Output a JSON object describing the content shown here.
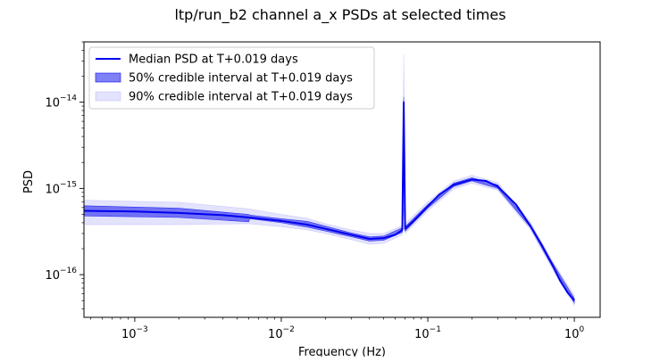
{
  "chart_data": {
    "type": "line",
    "title": "ltp/run_b2 channel a_x PSDs at selected times",
    "xlabel": "Frequency (Hz)",
    "ylabel": "PSD",
    "xscale": "log",
    "yscale": "log",
    "xlim": [
      0.00045,
      1.5
    ],
    "ylim": [
      3.2e-17,
      5e-14
    ],
    "grid": false,
    "legend_position": "top-left",
    "x_ticks": [
      {
        "value": 0.001,
        "base": "10",
        "exp": "−3"
      },
      {
        "value": 0.01,
        "base": "10",
        "exp": "−2"
      },
      {
        "value": 0.1,
        "base": "10",
        "exp": "−1"
      },
      {
        "value": 1,
        "base": "10",
        "exp": "0"
      }
    ],
    "y_ticks": [
      {
        "value": 1e-16,
        "base": "10",
        "exp": "−16"
      },
      {
        "value": 1e-15,
        "base": "10",
        "exp": "−15"
      },
      {
        "value": 1e-14,
        "base": "10",
        "exp": "−14"
      }
    ],
    "series": [
      {
        "name": "Median PSD at T+0.019 days",
        "kind": "line",
        "color": "#0000ee",
        "points": [
          [
            0.00045,
            5.5e-16
          ],
          [
            0.001,
            5.4e-16
          ],
          [
            0.002,
            5.2e-16
          ],
          [
            0.004,
            4.9e-16
          ],
          [
            0.006,
            4.6e-16
          ],
          [
            0.01,
            4.2e-16
          ],
          [
            0.015,
            3.8e-16
          ],
          [
            0.02,
            3.4e-16
          ],
          [
            0.03,
            2.9e-16
          ],
          [
            0.04,
            2.6e-16
          ],
          [
            0.05,
            2.65e-16
          ],
          [
            0.06,
            2.9e-16
          ],
          [
            0.067,
            3.3e-16
          ],
          [
            0.0685,
            1e-14
          ],
          [
            0.07,
            3.4e-16
          ],
          [
            0.08,
            4.2e-16
          ],
          [
            0.1,
            6.2e-16
          ],
          [
            0.12,
            8.5e-16
          ],
          [
            0.15,
            1.1e-15
          ],
          [
            0.2,
            1.27e-15
          ],
          [
            0.25,
            1.22e-15
          ],
          [
            0.3,
            1.05e-15
          ],
          [
            0.4,
            6.5e-16
          ],
          [
            0.5,
            3.7e-16
          ],
          [
            0.6,
            2.2e-16
          ],
          [
            0.7,
            1.35e-16
          ],
          [
            0.8,
            8.5e-17
          ],
          [
            0.9,
            6.2e-17
          ],
          [
            1.0,
            5e-17
          ]
        ]
      },
      {
        "name": "50% credible interval at T+0.019 days",
        "kind": "band",
        "color": "#0000ee",
        "opacity": 0.5,
        "points": [
          [
            0.00045,
            4.8e-16,
            6.3e-16
          ],
          [
            0.002,
            4.6e-16,
            5.9e-16
          ],
          [
            0.006,
            4.1e-16,
            5e-16
          ],
          [
            0.0061,
            4.45e-16,
            4.9e-16
          ],
          [
            0.01,
            4e-16,
            4.45e-16
          ],
          [
            0.015,
            3.55e-16,
            4.15e-16
          ],
          [
            0.02,
            3.2e-16,
            3.65e-16
          ],
          [
            0.03,
            2.75e-16,
            3.05e-16
          ],
          [
            0.04,
            2.45e-16,
            2.75e-16
          ],
          [
            0.05,
            2.5e-16,
            2.8e-16
          ],
          [
            0.067,
            3.1e-16,
            3.5e-16
          ],
          [
            0.0685,
            9e-15,
            1.15e-14
          ],
          [
            0.07,
            3.2e-16,
            3.6e-16
          ],
          [
            0.1,
            5.9e-16,
            6.5e-16
          ],
          [
            0.15,
            1.05e-15,
            1.15e-15
          ],
          [
            0.2,
            1.22e-15,
            1.33e-15
          ],
          [
            0.3,
            1e-15,
            1.1e-15
          ],
          [
            0.5,
            3.55e-16,
            3.85e-16
          ],
          [
            0.7,
            1.28e-16,
            1.42e-16
          ],
          [
            1.0,
            4.7e-17,
            5.3e-17
          ]
        ]
      },
      {
        "name": "90% credible interval at T+0.019 days",
        "kind": "band",
        "color": "#0000ee",
        "opacity": 0.11,
        "points": [
          [
            0.00045,
            3.8e-16,
            7.3e-16
          ],
          [
            0.002,
            3.8e-16,
            6.9e-16
          ],
          [
            0.006,
            3.9e-16,
            5.8e-16
          ],
          [
            0.01,
            3.6e-16,
            5e-16
          ],
          [
            0.015,
            3.3e-16,
            4.5e-16
          ],
          [
            0.02,
            3e-16,
            3.9e-16
          ],
          [
            0.03,
            2.55e-16,
            3.3e-16
          ],
          [
            0.04,
            2.25e-16,
            3e-16
          ],
          [
            0.05,
            2.3e-16,
            3e-16
          ],
          [
            0.067,
            2.9e-16,
            3.7e-16
          ],
          [
            0.0685,
            6e-16,
            3.6e-14
          ],
          [
            0.07,
            3e-16,
            3.9e-16
          ],
          [
            0.1,
            5.5e-16,
            7e-16
          ],
          [
            0.15,
            9.8e-16,
            1.22e-15
          ],
          [
            0.2,
            1.15e-15,
            1.42e-15
          ],
          [
            0.3,
            9.5e-16,
            1.17e-15
          ],
          [
            0.5,
            3.35e-16,
            4.1e-16
          ],
          [
            0.7,
            1.2e-16,
            1.5e-16
          ],
          [
            1.0,
            4.4e-17,
            5.7e-17
          ]
        ]
      }
    ]
  }
}
